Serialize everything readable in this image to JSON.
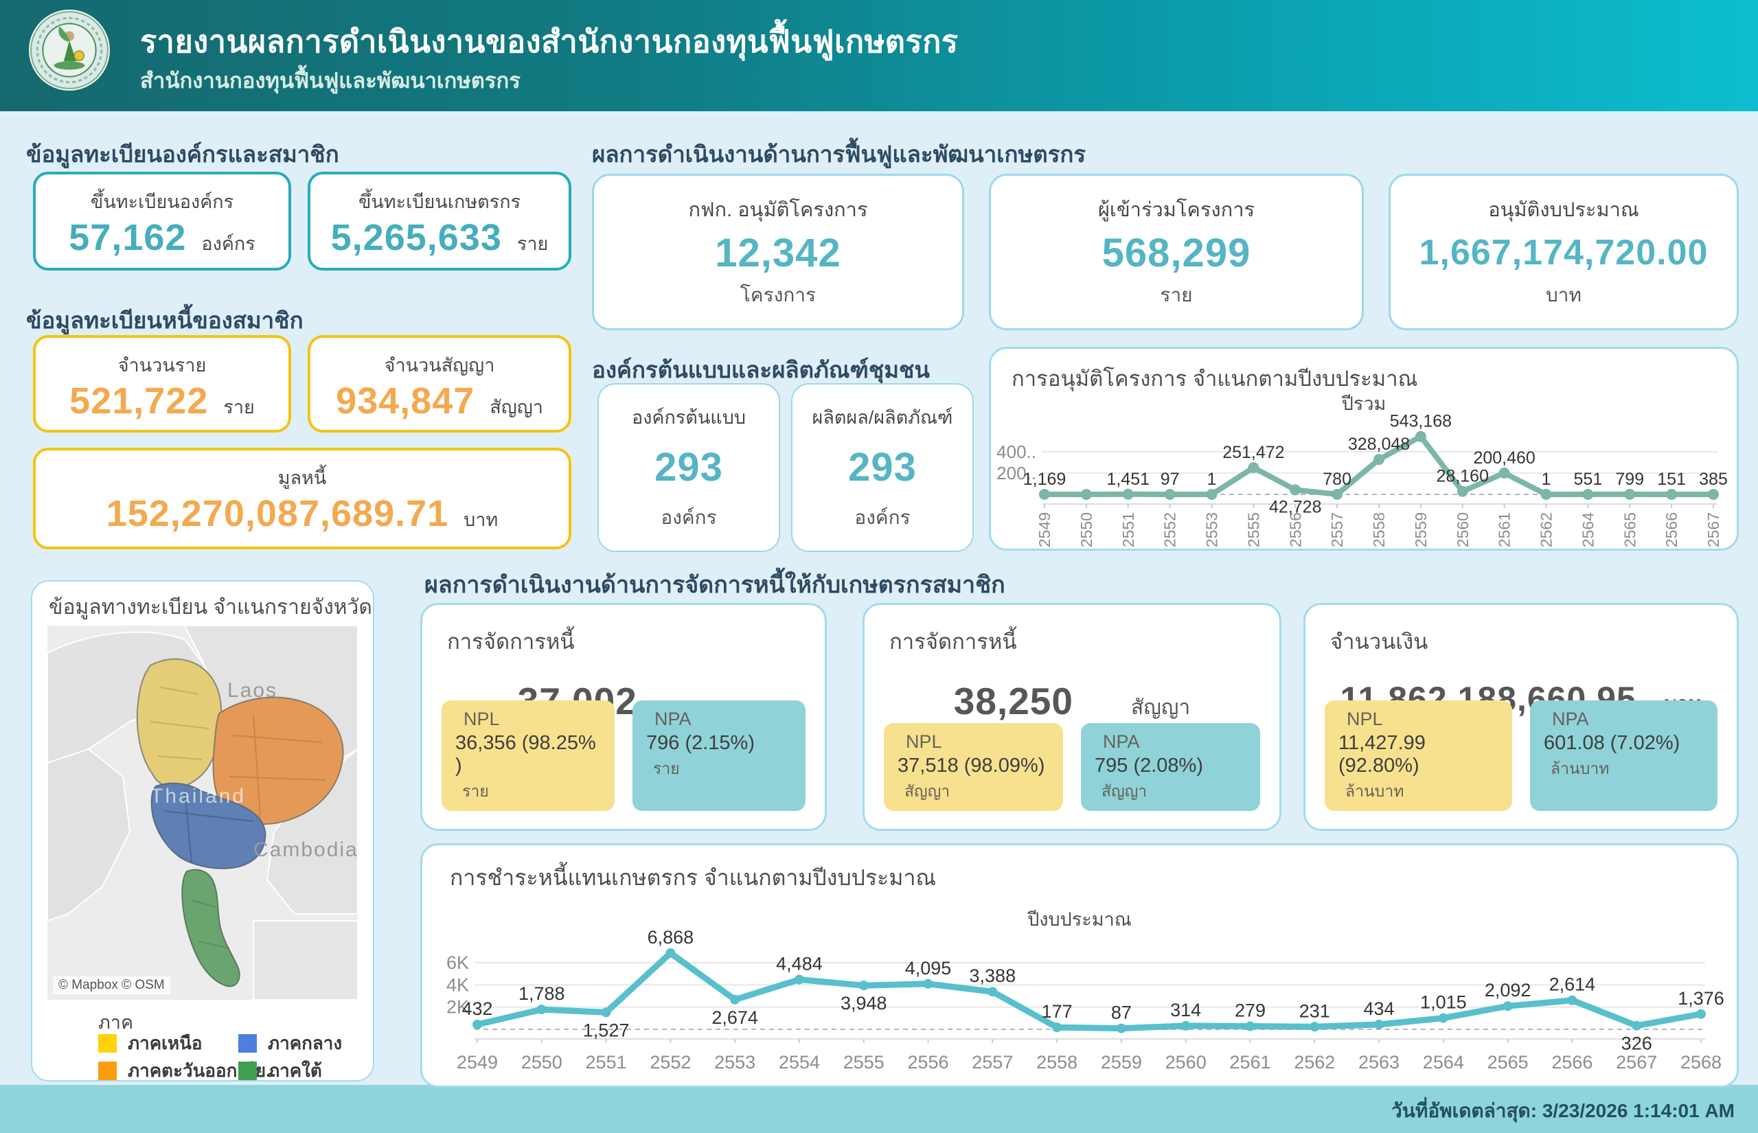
{
  "header": {
    "title": "รายงานผลการดำเนินงานของสำนักงานกองทุนฟื้นฟูเกษตรกร",
    "subtitle": "สำนักงานกองทุนฟื้นฟูและพัฒนาเกษตรกร"
  },
  "registration": {
    "title": "ข้อมูลทะเบียนองค์กรและสมาชิก",
    "cards": [
      {
        "label": "ขึ้นทะเบียนองค์กร",
        "value": "57,162",
        "unit": "องค์กร"
      },
      {
        "label": "ขึ้นทะเบียนเกษตรกร",
        "value": "5,265,633",
        "unit": "ราย"
      }
    ]
  },
  "debt_registration": {
    "title": "ข้อมูลทะเบียนหนี้ของสมาชิก",
    "cards": [
      {
        "label": "จำนวนราย",
        "value": "521,722",
        "unit": "ราย"
      },
      {
        "label": "จำนวนสัญญา",
        "value": "934,847",
        "unit": "สัญญา"
      }
    ],
    "wide_card": {
      "label": "มูลหนี้",
      "value": "152,270,087,689.71",
      "unit": "บาท"
    }
  },
  "rehabilitation": {
    "title": "ผลการดำเนินงานด้านการฟื้นฟูและพัฒนาเกษตรกร",
    "cards": [
      {
        "label": "กฟก. อนุมัติโครงการ",
        "value": "12,342",
        "unit": "โครงการ"
      },
      {
        "label": "ผู้เข้าร่วมโครงการ",
        "value": "568,299",
        "unit": "ราย"
      },
      {
        "label": "อนุมัติงบประมาณ",
        "value": "1,667,174,720.00",
        "unit": "บาท"
      }
    ]
  },
  "model_org": {
    "title": "องค์กรต้นแบบและผลิตภัณฑ์ชุมชน",
    "cards": [
      {
        "label": "องค์กรต้นแบบ",
        "value": "293",
        "unit": "องค์กร"
      },
      {
        "label": "ผลิตผล/ผลิตภัณฑ์",
        "value": "293",
        "unit": "องค์กร"
      }
    ]
  },
  "province_map": {
    "title": "ข้อมูลทางทะเบียน จำแนกรายจังหวัด",
    "labels": {
      "laos": "Laos",
      "cambodia": "Cambodia",
      "watermark": "Thailand"
    },
    "attribution": "© Mapbox © OSM",
    "legend": {
      "title": "ภาค",
      "items": [
        {
          "label": "ภาคเหนือ",
          "color": "#FFD20A"
        },
        {
          "label": "ภาคกลาง",
          "color": "#4F7FDE"
        },
        {
          "label": "ภาคตะวันออกเฉีย..",
          "color": "#FC9E0C"
        },
        {
          "label": "ภาคใต้",
          "color": "#3F9E4F"
        }
      ]
    }
  },
  "debt_management": {
    "title": "ผลการดำเนินงานด้านการจัดการหนี้ให้กับเกษตรกรสมาชิก",
    "cards": [
      {
        "label": "การจัดการหนี้",
        "value": "37,002",
        "unit": "ราย",
        "npl": {
          "title": "NPL",
          "value": "36,356 (98.25% )",
          "unit": "ราย"
        },
        "npa": {
          "title": "NPA",
          "value": "796 (2.15%)",
          "unit": "ราย"
        }
      },
      {
        "label": "การจัดการหนี้",
        "value": "38,250",
        "unit": "สัญญา",
        "npl": {
          "title": "NPL",
          "value": "37,518 (98.09%)",
          "unit": "สัญญา"
        },
        "npa": {
          "title": "NPA",
          "value": "795 (2.08%)",
          "unit": "สัญญา"
        }
      },
      {
        "label": "จำนวนเงิน",
        "value": "11,862,188,660.95",
        "unit": "บาท",
        "npl": {
          "title": "NPL",
          "value": "11,427.99 (92.80%)",
          "unit": "ล้านบาท"
        },
        "npa": {
          "title": "NPA",
          "value": "601.08 (7.02%)",
          "unit": "ล้านบาท"
        }
      }
    ]
  },
  "footer": {
    "updated": "วันที่อัพเดตล่าสุด: 3/23/2026 1:14:01 AM"
  },
  "colors": {
    "header_gradient_start": "#15696f",
    "header_gradient_end": "#0cbecf",
    "teal_border": "#27abbb",
    "yellow_border": "#f2c411",
    "teal_number": "#45aebc",
    "orange_number": "#f3a94e",
    "chart1_line": "#7cb6a9",
    "chart2_line": "#58bfcd",
    "npl_chip": "#f8e18e",
    "npa_chip": "#8fd3d8"
  },
  "chart_data": [
    {
      "type": "line",
      "title": "การอนุมัติโครงการ จำแนกตามปีงบประมาณ",
      "axis_title": "ปีรวม",
      "categories": [
        "2549",
        "2550",
        "2551",
        "2552",
        "2553",
        "2555",
        "2556",
        "2557",
        "2558",
        "2559",
        "2560",
        "2561",
        "2562",
        "2564",
        "2565",
        "2566",
        "2567"
      ],
      "values": [
        1169,
        null,
        1451,
        97,
        1,
        251472,
        42728,
        780,
        328048,
        543168,
        28160,
        200460,
        1,
        551,
        799,
        151,
        385
      ],
      "labels": [
        "1,169",
        "",
        "1,451",
        "97",
        "1",
        "251,472",
        "42,728",
        "780",
        "328,048",
        "543,168",
        "28,160",
        "200,460",
        "1",
        "551",
        "799",
        "151",
        "385"
      ],
      "ylim": [
        0,
        580000
      ],
      "gridlines": [
        {
          "value": 200000,
          "label": "200.."
        },
        {
          "value": 400000,
          "label": "400.."
        }
      ],
      "label_below_indices": [
        6
      ],
      "grid_on": true,
      "tick_rotation": -90
    },
    {
      "type": "line",
      "title": "การชำระหนี้แทนเกษตรกร จำแนกตามปีงบประมาณ",
      "axis_title": "ปีงบประมาณ",
      "categories": [
        "2549",
        "2550",
        "2551",
        "2552",
        "2553",
        "2554",
        "2555",
        "2556",
        "2557",
        "2558",
        "2559",
        "2560",
        "2561",
        "2562",
        "2563",
        "2564",
        "2565",
        "2566",
        "2567",
        "2568"
      ],
      "values": [
        432,
        1788,
        1527,
        6868,
        2674,
        4484,
        3948,
        4095,
        3388,
        177,
        87,
        314,
        279,
        231,
        434,
        1015,
        2092,
        2614,
        326,
        1376
      ],
      "labels": [
        "432",
        "1,788",
        "1,527",
        "6,868",
        "2,674",
        "4,484",
        "3,948",
        "4,095",
        "3,388",
        "177",
        "87",
        "314",
        "279",
        "231",
        "434",
        "1,015",
        "2,092",
        "2,614",
        "326",
        "1,376"
      ],
      "ylim": [
        0,
        7300
      ],
      "gridlines": [
        {
          "value": 2000,
          "label": "2K"
        },
        {
          "value": 4000,
          "label": "4K"
        },
        {
          "value": 6000,
          "label": "6K"
        }
      ],
      "label_below_indices": [
        2,
        4,
        6,
        18
      ],
      "grid_on": true,
      "tick_rotation": 0
    }
  ]
}
